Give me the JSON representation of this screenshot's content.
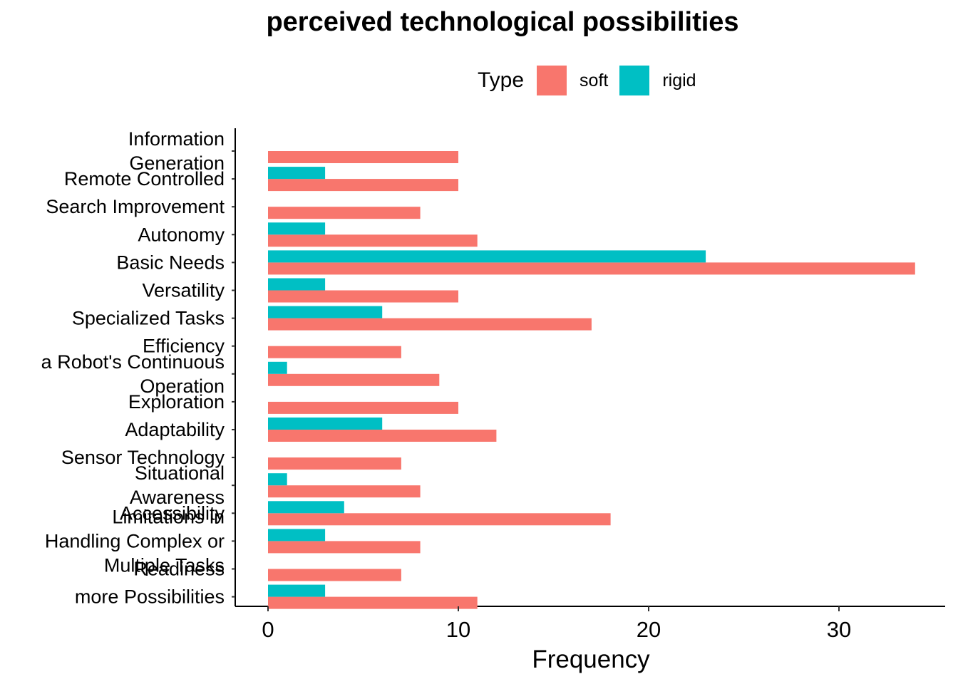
{
  "chart_data": {
    "type": "bar",
    "orientation": "horizontal",
    "title": "perceived technological possibilities",
    "xlabel": "Frequency",
    "ylabel": "",
    "xlim": [
      0,
      35
    ],
    "xticks": [
      0,
      10,
      20,
      30
    ],
    "grid": false,
    "legend": {
      "title": "Type",
      "position": "top",
      "entries": [
        {
          "name": "soft",
          "color": "#F8766D"
        },
        {
          "name": "rigid",
          "color": "#00BFC4"
        }
      ]
    },
    "categories": [
      "Information Generation",
      "Remote Controlled",
      "Search Improvement",
      "Autonomy",
      "Basic Needs",
      "Versatility",
      "Specialized Tasks",
      "Efficiency",
      "a Robot's Continuous Operation",
      "Exploration",
      "Adaptability",
      "Sensor Technology",
      "Situational Awareness",
      "Accessibility",
      "Limitations in Handling Complex or Multiple Tasks",
      "Readiness",
      "more Possibilities"
    ],
    "series": [
      {
        "name": "soft",
        "color": "#F8766D",
        "values": [
          10,
          10,
          8,
          11,
          34,
          10,
          17,
          7,
          9,
          10,
          12,
          7,
          8,
          18,
          8,
          7,
          11
        ]
      },
      {
        "name": "rigid",
        "color": "#00BFC4",
        "values": [
          0,
          3,
          0,
          3,
          23,
          3,
          6,
          0,
          1,
          0,
          6,
          0,
          1,
          4,
          3,
          0,
          3
        ]
      }
    ]
  }
}
